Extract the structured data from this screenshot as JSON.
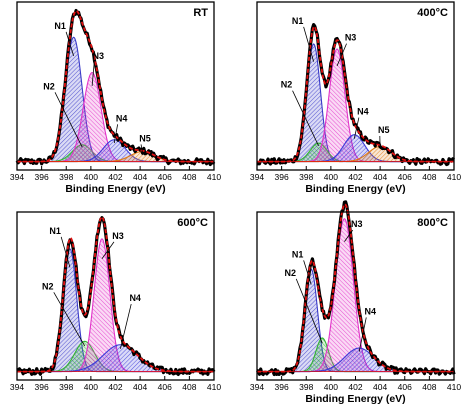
{
  "figure": {
    "panel_titles": [
      "RT",
      "400°C",
      "600°C",
      "800°C"
    ]
  },
  "colors": {
    "N1": "#3a3ac8",
    "N2": "#33b533",
    "N3": "#e233c8",
    "N4": "#3a3ad8",
    "N5": "#e07a10",
    "fit": "#e01010",
    "data": "#000000"
  },
  "chart_data": [
    {
      "type": "line",
      "title": "RT",
      "xlabel": "Binding Energy (eV)",
      "ylabel": "",
      "xlim": [
        394,
        410
      ],
      "xticks": [
        394,
        396,
        398,
        400,
        402,
        404,
        406,
        408,
        410
      ],
      "x_direction": "increasing",
      "grid": false,
      "background_level": 0.05,
      "series": [
        {
          "name": "N1",
          "center": 398.6,
          "fwhm": 1.6,
          "height": 0.74,
          "label_at": [
            397.5,
            0.84
          ]
        },
        {
          "name": "N2",
          "center": 399.3,
          "fwhm": 1.9,
          "height": 0.1,
          "label_at": [
            396.6,
            0.48
          ]
        },
        {
          "name": "N3",
          "center": 400.1,
          "fwhm": 1.7,
          "height": 0.53,
          "label_at": [
            400.6,
            0.66
          ]
        },
        {
          "name": "N4",
          "center": 401.9,
          "fwhm": 2.1,
          "height": 0.13,
          "label_at": [
            402.5,
            0.29
          ]
        },
        {
          "name": "N5",
          "center": 404.2,
          "fwhm": 2.3,
          "height": 0.06,
          "label_at": [
            404.4,
            0.17
          ]
        }
      ]
    },
    {
      "type": "line",
      "title": "400°C",
      "xlabel": "Binding Energy (eV)",
      "ylabel": "",
      "xlim": [
        394,
        410
      ],
      "xticks": [
        394,
        396,
        398,
        400,
        402,
        404,
        406,
        408,
        410
      ],
      "x_direction": "increasing",
      "grid": false,
      "background_level": 0.05,
      "series": [
        {
          "name": "N1",
          "center": 398.6,
          "fwhm": 1.3,
          "height": 0.7,
          "label_at": [
            397.3,
            0.87
          ]
        },
        {
          "name": "N2",
          "center": 399.0,
          "fwhm": 1.6,
          "height": 0.11,
          "label_at": [
            396.4,
            0.49
          ]
        },
        {
          "name": "N3",
          "center": 400.5,
          "fwhm": 1.5,
          "height": 0.67,
          "label_at": [
            401.6,
            0.77
          ]
        },
        {
          "name": "N4",
          "center": 401.9,
          "fwhm": 2.0,
          "height": 0.16,
          "label_at": [
            402.6,
            0.33
          ]
        },
        {
          "name": "N5",
          "center": 404.0,
          "fwhm": 2.2,
          "height": 0.09,
          "label_at": [
            404.3,
            0.22
          ]
        }
      ]
    },
    {
      "type": "line",
      "title": "600°C",
      "xlabel": "",
      "ylabel": "",
      "xlim": [
        394,
        410
      ],
      "xticks": [
        394,
        396,
        398,
        400,
        402,
        404,
        406,
        408,
        410
      ],
      "x_direction": "increasing",
      "grid": false,
      "background_level": 0.05,
      "series": [
        {
          "name": "N1",
          "center": 398.3,
          "fwhm": 1.3,
          "height": 0.73,
          "label_at": [
            397.1,
            0.87
          ]
        },
        {
          "name": "N2",
          "center": 399.5,
          "fwhm": 1.9,
          "height": 0.18,
          "label_at": [
            396.5,
            0.54
          ]
        },
        {
          "name": "N3",
          "center": 400.9,
          "fwhm": 1.5,
          "height": 0.79,
          "label_at": [
            402.2,
            0.84
          ]
        },
        {
          "name": "N4",
          "center": 402.4,
          "fwhm": 3.3,
          "height": 0.16,
          "label_at": [
            403.6,
            0.47
          ]
        }
      ]
    },
    {
      "type": "line",
      "title": "800°C",
      "xlabel": "Binding Energy (eV)",
      "ylabel": "",
      "xlim": [
        394,
        410
      ],
      "xticks": [
        394,
        396,
        398,
        400,
        402,
        404,
        406,
        408,
        410
      ],
      "x_direction": "increasing",
      "grid": false,
      "background_level": 0.05,
      "series": [
        {
          "name": "N1",
          "center": 398.4,
          "fwhm": 1.2,
          "height": 0.61,
          "label_at": [
            397.3,
            0.73
          ]
        },
        {
          "name": "N2",
          "center": 399.3,
          "fwhm": 1.2,
          "height": 0.2,
          "label_at": [
            396.7,
            0.62
          ]
        },
        {
          "name": "N3",
          "center": 401.1,
          "fwhm": 1.7,
          "height": 0.91,
          "label_at": [
            402.1,
            0.91
          ]
        },
        {
          "name": "N4",
          "center": 402.3,
          "fwhm": 2.8,
          "height": 0.14,
          "label_at": [
            403.2,
            0.39
          ]
        }
      ]
    }
  ]
}
